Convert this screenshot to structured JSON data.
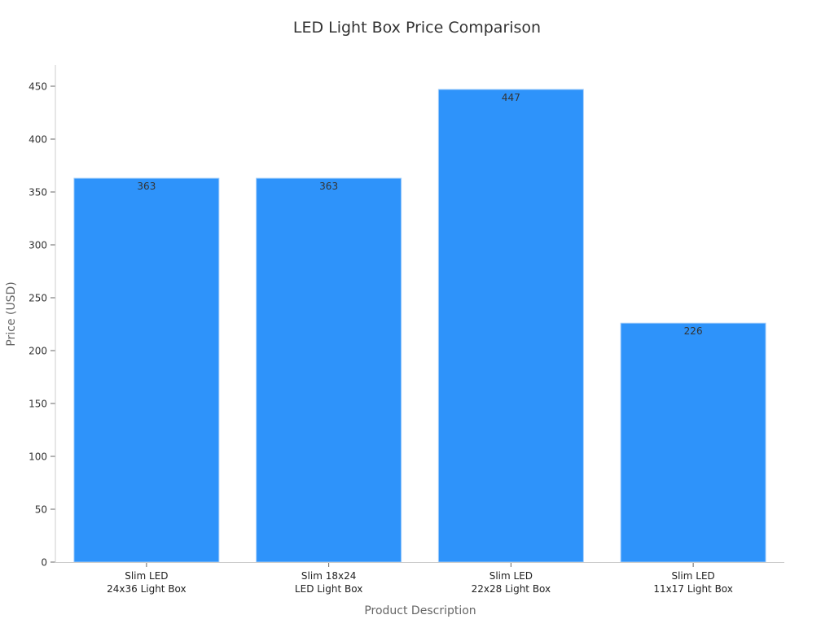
{
  "chart_data": {
    "type": "bar",
    "title": "LED Light Box Price Comparison",
    "xlabel": "Product Description",
    "ylabel": "Price (USD)",
    "categories": [
      [
        "Slim LED",
        "24x36 Light Box"
      ],
      [
        "Slim 18x24",
        "LED Light Box"
      ],
      [
        "Slim LED",
        "22x28 Light Box"
      ],
      [
        "Slim LED",
        "11x17 Light Box"
      ]
    ],
    "values": [
      363,
      363,
      447,
      226
    ],
    "ylim": [
      0,
      470
    ],
    "yticks": [
      0,
      50,
      100,
      150,
      200,
      250,
      300,
      350,
      400,
      450
    ],
    "grid": false,
    "bar_color": "#2e93fa",
    "bar_edge_color": "#a8d0fb"
  }
}
